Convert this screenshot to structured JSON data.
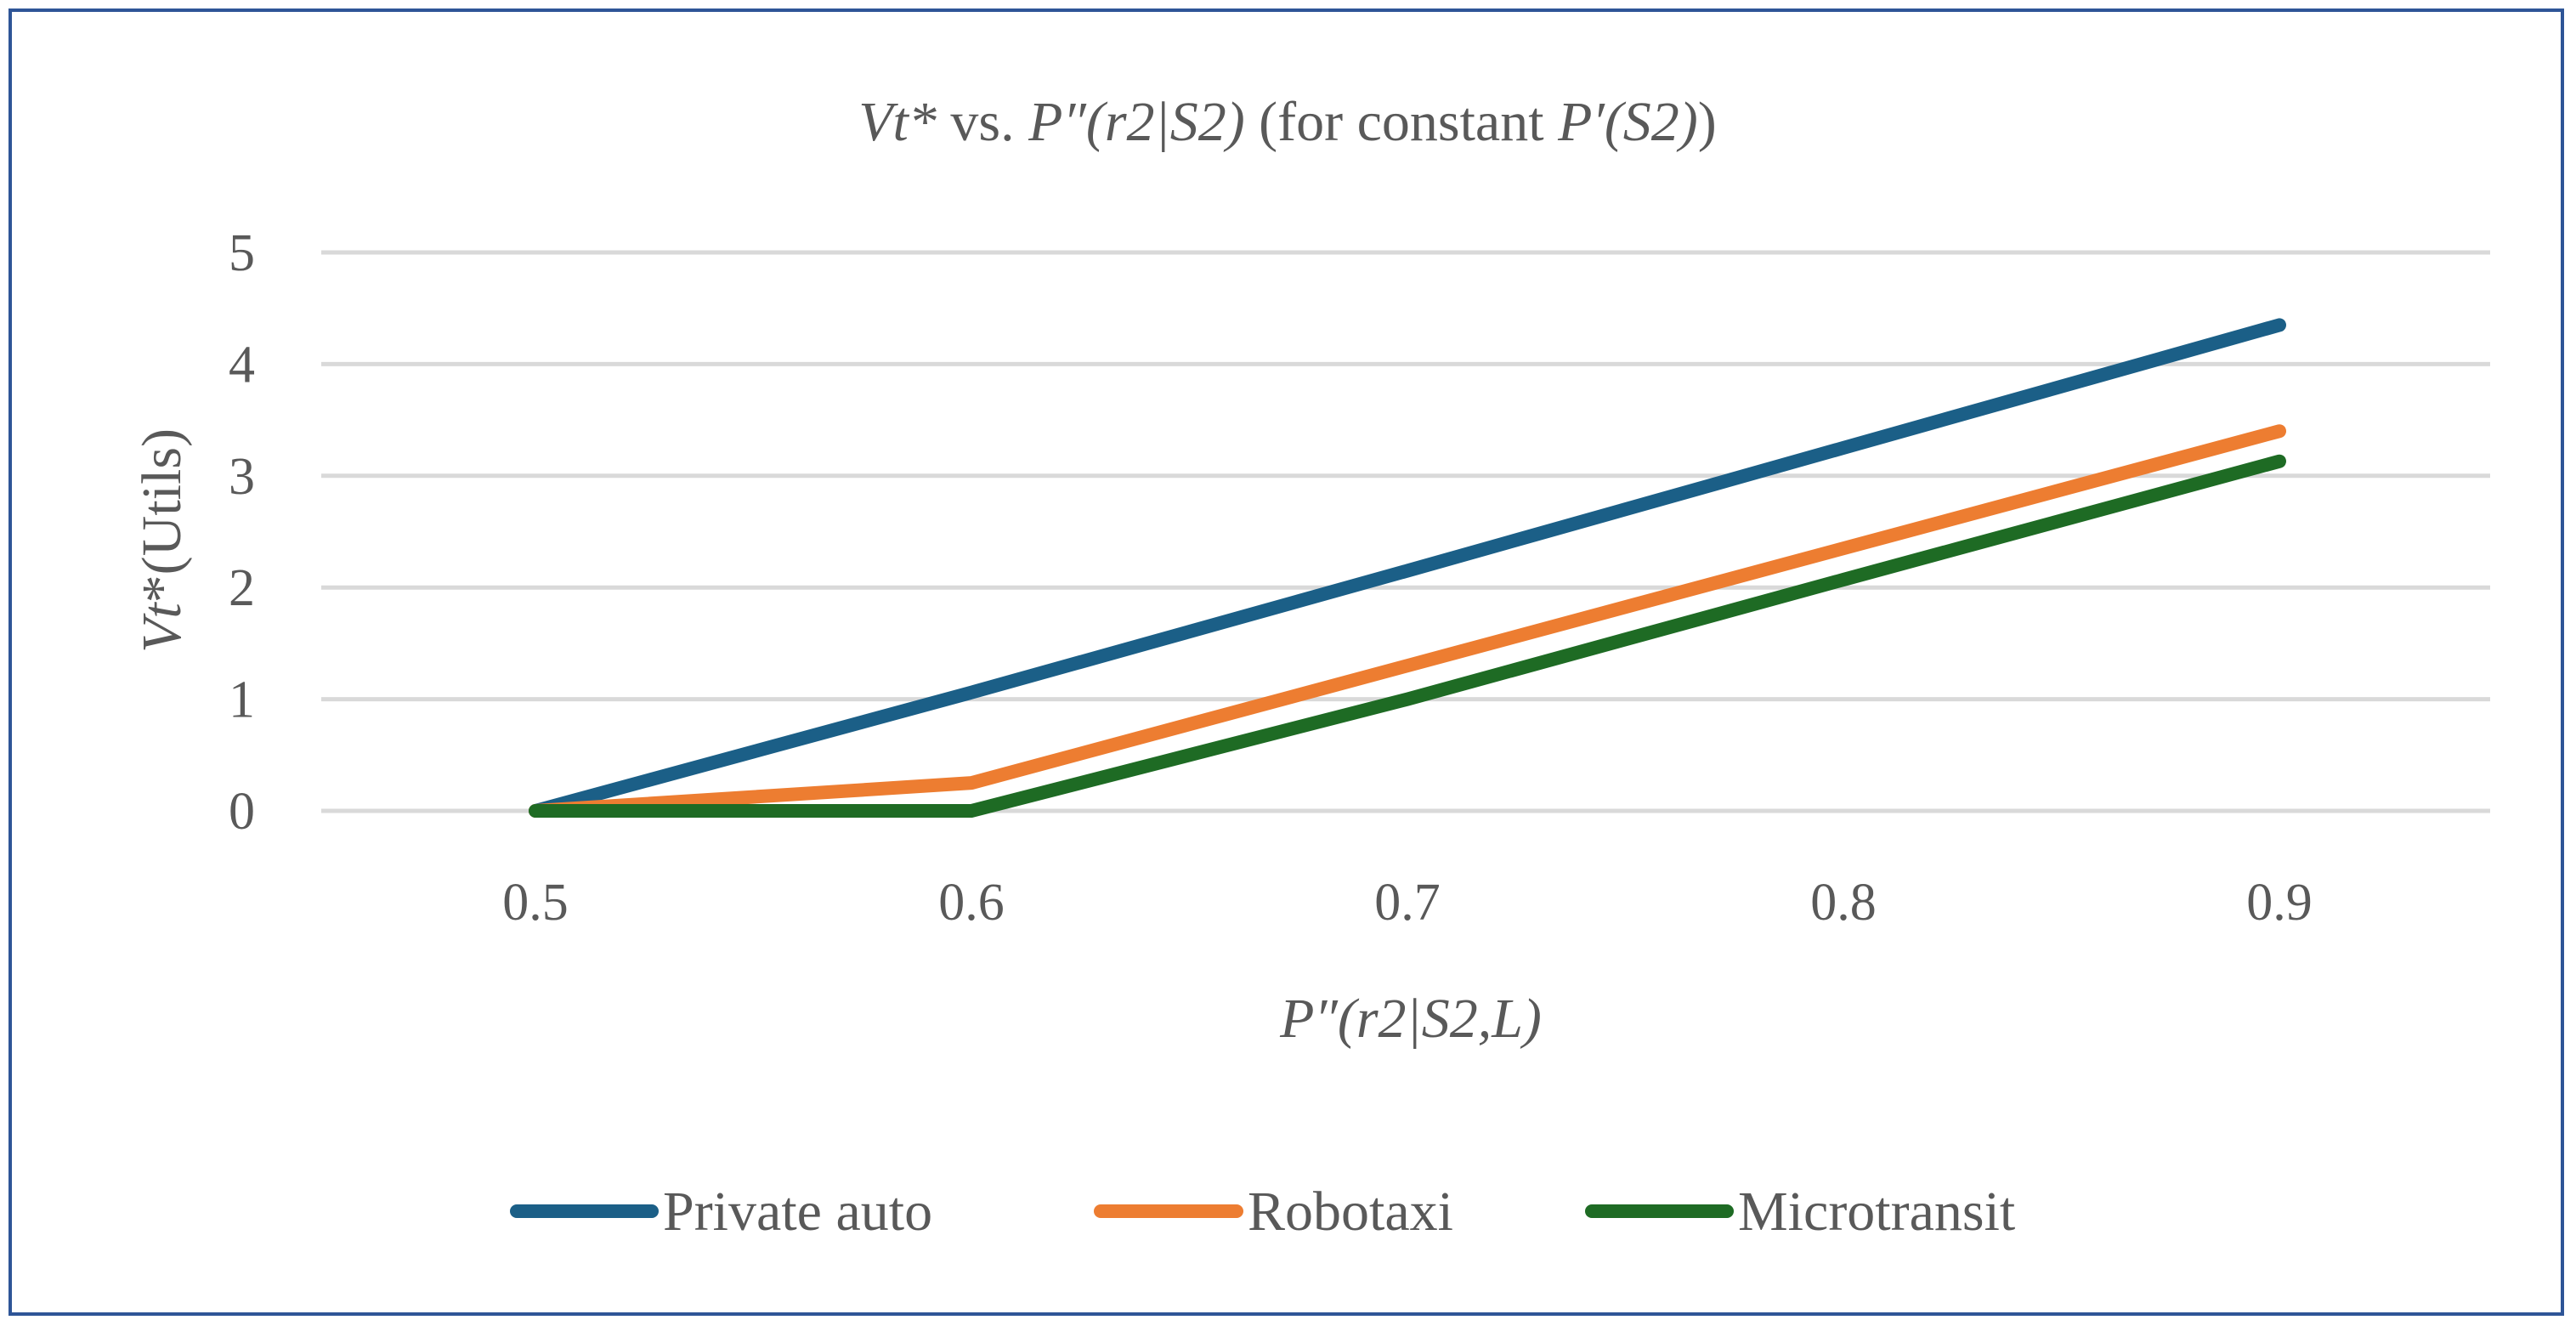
{
  "chart_data": {
    "type": "line",
    "title_parts": [
      {
        "text": "Vt*",
        "italic": true
      },
      {
        "text": " vs. ",
        "italic": false
      },
      {
        "text": "P″(r2|S2)",
        "italic": true
      },
      {
        "text": " (for constant ",
        "italic": false
      },
      {
        "text": "P′(S2)",
        "italic": true
      },
      {
        "text": ")",
        "italic": false
      }
    ],
    "ylabel_parts": [
      {
        "text": "Vt",
        "italic": true
      },
      {
        "text": "*(Utils)",
        "italic": false
      }
    ],
    "xlabel_parts": [
      {
        "text": "P″(r2|S2,L)",
        "italic": true
      }
    ],
    "categories": [
      "0.5",
      "0.6",
      "0.7",
      "0.8",
      "0.9"
    ],
    "y_ticks": [
      "0",
      "1",
      "2",
      "3",
      "4",
      "5"
    ],
    "ylim": [
      0,
      5
    ],
    "grid": true,
    "legend_position": "bottom",
    "series": [
      {
        "name": "Private auto",
        "color": "#1B5F87",
        "values": [
          0,
          1.06,
          2.15,
          3.25,
          4.35
        ]
      },
      {
        "name": "Robotaxi",
        "color": "#ED7D31",
        "values": [
          0,
          0.25,
          1.3,
          2.35,
          3.4
        ]
      },
      {
        "name": "Microtransit",
        "color": "#1E6B24",
        "values": [
          0,
          0,
          1.0,
          2.07,
          3.13
        ]
      }
    ]
  }
}
